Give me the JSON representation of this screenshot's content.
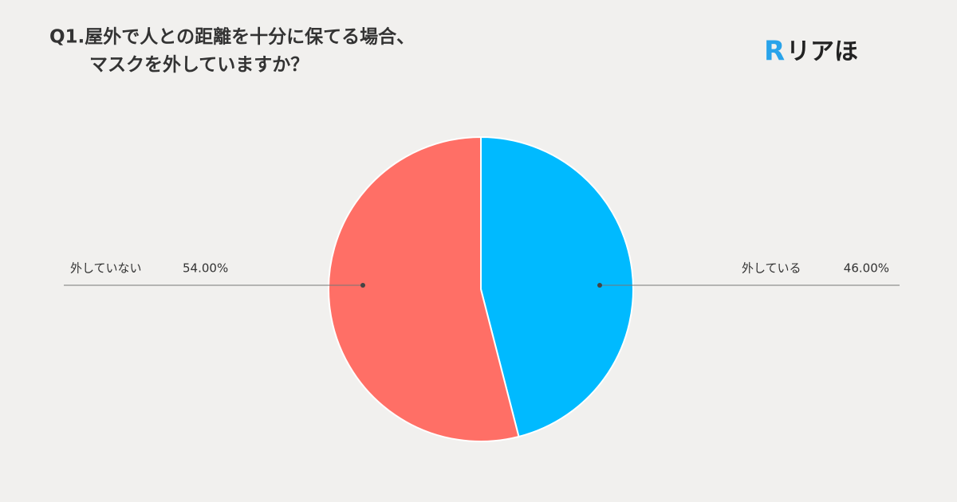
{
  "chart_data": {
    "type": "pie",
    "title": [
      "Q1.屋外で人との距離を十分に保てる場合、",
      "マスクを外していますか？"
    ],
    "logo": {
      "mark": "R",
      "text": "リアほ"
    },
    "categories": [
      "外している",
      "外していない"
    ],
    "values": [
      46,
      54
    ],
    "value_labels": [
      "46.00%",
      "54.00%"
    ],
    "colors": [
      "#00baff",
      "#ff6f66"
    ]
  }
}
